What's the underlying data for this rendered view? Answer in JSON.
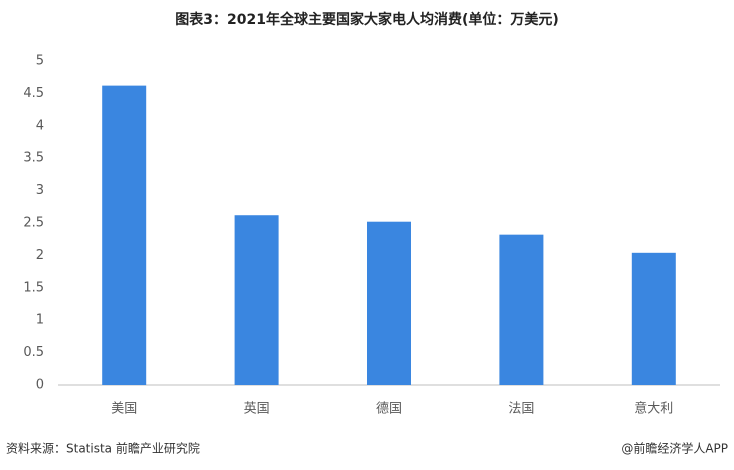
{
  "chart_data": {
    "type": "bar",
    "title": "图表3：2021年全球主要国家大家电人均消费(单位：万美元)",
    "categories": [
      "美国",
      "英国",
      "德国",
      "法国",
      "意大利"
    ],
    "values": [
      4.62,
      2.62,
      2.52,
      2.32,
      2.04
    ],
    "color": "#3a86e0",
    "ylim": [
      0,
      5
    ],
    "yticks": [
      0,
      0.5,
      1,
      1.5,
      2,
      2.5,
      3,
      3.5,
      4,
      4.5,
      5
    ],
    "grid": false,
    "source": "资料来源：Statista 前瞻产业研究院",
    "credit": "@前瞻经济学人APP"
  }
}
